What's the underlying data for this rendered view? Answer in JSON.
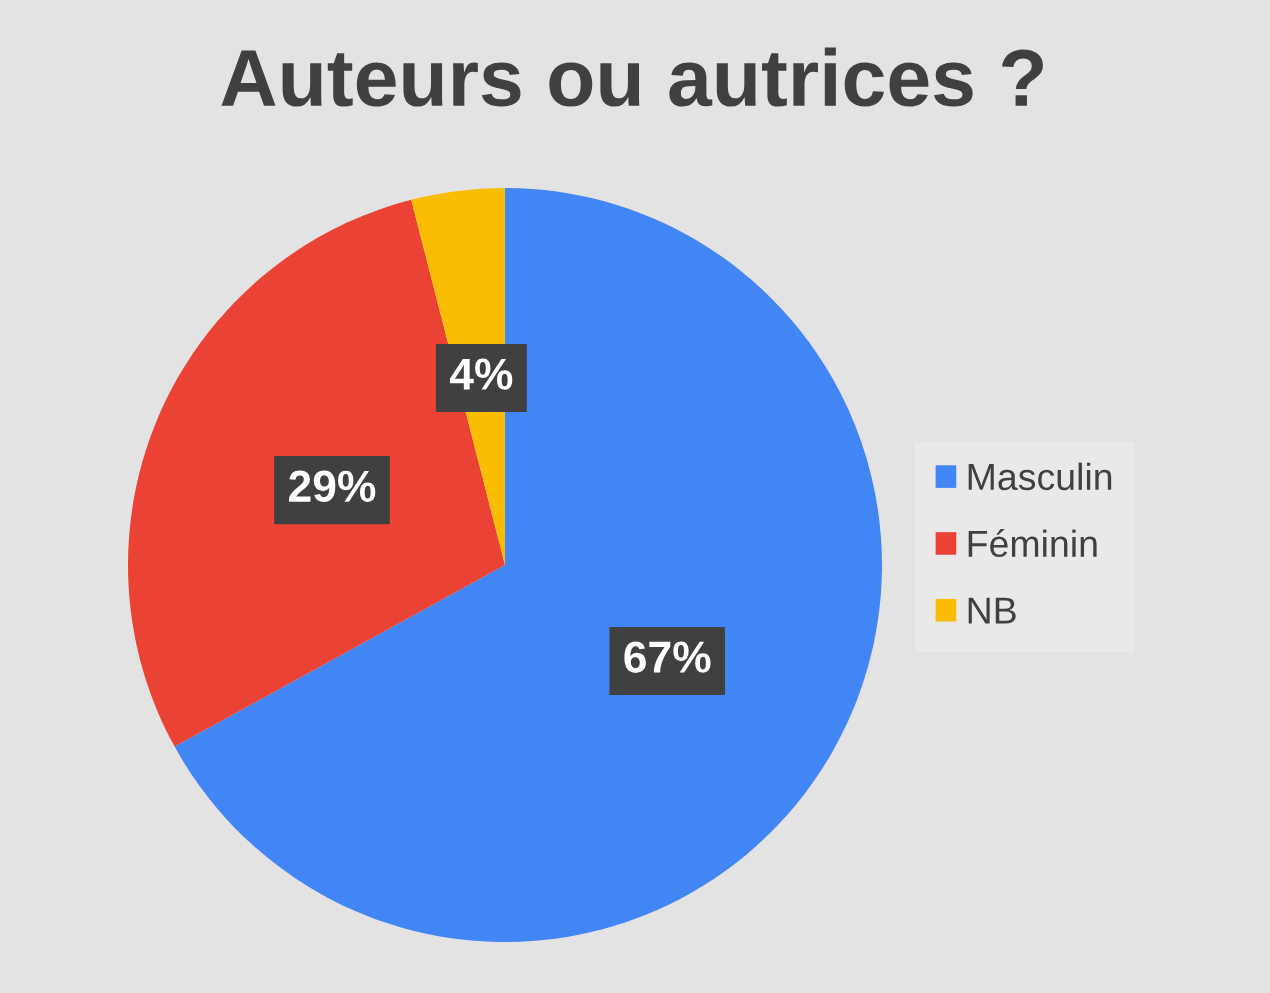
{
  "chart_data": {
    "type": "pie",
    "title": "Auteurs ou autrices ?",
    "categories": [
      "Masculin",
      "Féminin",
      "NB"
    ],
    "values": [
      67,
      29,
      4
    ],
    "colors": [
      "#4285f4",
      "#ea4335",
      "#fbbc04"
    ],
    "value_labels": [
      "67%",
      "29%",
      "4%"
    ],
    "legend": "right"
  }
}
